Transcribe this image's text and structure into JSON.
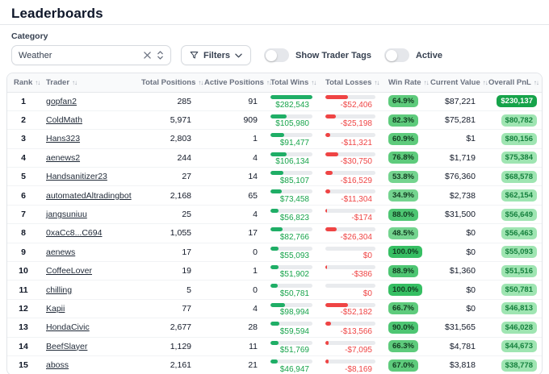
{
  "page": {
    "title": "Leaderboards"
  },
  "filters": {
    "category_label": "Category",
    "category_value": "Weather",
    "filters_button_label": "Filters",
    "toggles": [
      {
        "label": "Show Trader Tags",
        "on": false
      },
      {
        "label": "Active",
        "on": false
      }
    ]
  },
  "colors": {
    "wins_text": "#16a34a",
    "losses_text": "#ef4444",
    "win_bar": "#1fae66",
    "loss_bar": "#ef4444",
    "track": "#e9ebee",
    "winrate_badge_text": "#123c21",
    "winrate_badge_full": "#36bf63",
    "winrate_badge_high": "#4ec673",
    "winrate_badge_mid": "#5ecb7c",
    "winrate_badge_low": "#74d48f",
    "pnl_badge_bg": "#9fe5b2",
    "pnl_badge_text": "#15803d",
    "pnl_top_badge_bg": "#16a34a",
    "pnl_top_badge_text": "#ffffff"
  },
  "table": {
    "sort_icon": "↑↓",
    "columns": [
      "Rank",
      "Trader",
      "Total Positions",
      "Active Positions",
      "Total Wins",
      "Total Losses",
      "Win Rate",
      "Current Value",
      "Overall PnL"
    ],
    "wins_scale_max": 282543,
    "losses_scale_max": 52406,
    "rows": [
      {
        "rank": "1",
        "trader": "gopfan2",
        "total_positions": "285",
        "active_positions": "91",
        "total_wins": {
          "display": "$282,543",
          "value": 282543
        },
        "total_losses": {
          "display": "-$52,406",
          "value": 52406
        },
        "win_rate": {
          "display": "64.9%",
          "value": 64.9
        },
        "current_value": "$87,221",
        "overall_pnl": {
          "display": "$230,137",
          "top": true
        }
      },
      {
        "rank": "2",
        "trader": "ColdMath",
        "total_positions": "5,971",
        "active_positions": "909",
        "total_wins": {
          "display": "$105,980",
          "value": 105980
        },
        "total_losses": {
          "display": "-$25,198",
          "value": 25198
        },
        "win_rate": {
          "display": "82.3%",
          "value": 82.3
        },
        "current_value": "$75,281",
        "overall_pnl": {
          "display": "$80,782",
          "top": false
        }
      },
      {
        "rank": "3",
        "trader": "Hans323",
        "total_positions": "2,803",
        "active_positions": "1",
        "total_wins": {
          "display": "$91,477",
          "value": 91477
        },
        "total_losses": {
          "display": "-$11,321",
          "value": 11321
        },
        "win_rate": {
          "display": "60.9%",
          "value": 60.9
        },
        "current_value": "$1",
        "overall_pnl": {
          "display": "$80,156",
          "top": false
        }
      },
      {
        "rank": "4",
        "trader": "aenews2",
        "total_positions": "244",
        "active_positions": "4",
        "total_wins": {
          "display": "$106,134",
          "value": 106134
        },
        "total_losses": {
          "display": "-$30,750",
          "value": 30750
        },
        "win_rate": {
          "display": "76.8%",
          "value": 76.8
        },
        "current_value": "$1,719",
        "overall_pnl": {
          "display": "$75,384",
          "top": false
        }
      },
      {
        "rank": "5",
        "trader": "Handsanitizer23",
        "total_positions": "27",
        "active_positions": "14",
        "total_wins": {
          "display": "$85,107",
          "value": 85107
        },
        "total_losses": {
          "display": "-$16,529",
          "value": 16529
        },
        "win_rate": {
          "display": "53.8%",
          "value": 53.8
        },
        "current_value": "$76,360",
        "overall_pnl": {
          "display": "$68,578",
          "top": false
        }
      },
      {
        "rank": "6",
        "trader": "automatedAltradingbot",
        "total_positions": "2,168",
        "active_positions": "65",
        "total_wins": {
          "display": "$73,458",
          "value": 73458
        },
        "total_losses": {
          "display": "-$11,304",
          "value": 11304
        },
        "win_rate": {
          "display": "34.9%",
          "value": 34.9
        },
        "current_value": "$2,738",
        "overall_pnl": {
          "display": "$62,154",
          "top": false
        }
      },
      {
        "rank": "7",
        "trader": "jangsuniuu",
        "total_positions": "25",
        "active_positions": "4",
        "total_wins": {
          "display": "$56,823",
          "value": 56823
        },
        "total_losses": {
          "display": "-$174",
          "value": 174
        },
        "win_rate": {
          "display": "88.0%",
          "value": 88.0
        },
        "current_value": "$31,500",
        "overall_pnl": {
          "display": "$56,649",
          "top": false
        }
      },
      {
        "rank": "8",
        "trader": "0xaCc8...C694",
        "total_positions": "1,055",
        "active_positions": "17",
        "total_wins": {
          "display": "$82,766",
          "value": 82766
        },
        "total_losses": {
          "display": "-$26,304",
          "value": 26304
        },
        "win_rate": {
          "display": "48.5%",
          "value": 48.5
        },
        "current_value": "$0",
        "overall_pnl": {
          "display": "$56,463",
          "top": false
        }
      },
      {
        "rank": "9",
        "trader": "aenews",
        "total_positions": "17",
        "active_positions": "0",
        "total_wins": {
          "display": "$55,093",
          "value": 55093
        },
        "total_losses": {
          "display": "$0",
          "value": 0
        },
        "win_rate": {
          "display": "100.0%",
          "value": 100.0
        },
        "current_value": "$0",
        "overall_pnl": {
          "display": "$55,093",
          "top": false
        }
      },
      {
        "rank": "10",
        "trader": "CoffeeLover",
        "total_positions": "19",
        "active_positions": "1",
        "total_wins": {
          "display": "$51,902",
          "value": 51902
        },
        "total_losses": {
          "display": "-$386",
          "value": 386
        },
        "win_rate": {
          "display": "88.9%",
          "value": 88.9
        },
        "current_value": "$1,360",
        "overall_pnl": {
          "display": "$51,516",
          "top": false
        }
      },
      {
        "rank": "11",
        "trader": "chilling",
        "total_positions": "5",
        "active_positions": "0",
        "total_wins": {
          "display": "$50,781",
          "value": 50781
        },
        "total_losses": {
          "display": "$0",
          "value": 0
        },
        "win_rate": {
          "display": "100.0%",
          "value": 100.0
        },
        "current_value": "$0",
        "overall_pnl": {
          "display": "$50,781",
          "top": false
        }
      },
      {
        "rank": "12",
        "trader": "Kapii",
        "total_positions": "77",
        "active_positions": "4",
        "total_wins": {
          "display": "$98,994",
          "value": 98994
        },
        "total_losses": {
          "display": "-$52,182",
          "value": 52182
        },
        "win_rate": {
          "display": "66.7%",
          "value": 66.7
        },
        "current_value": "$0",
        "overall_pnl": {
          "display": "$46,813",
          "top": false
        }
      },
      {
        "rank": "13",
        "trader": "HondaCivic",
        "total_positions": "2,677",
        "active_positions": "28",
        "total_wins": {
          "display": "$59,594",
          "value": 59594
        },
        "total_losses": {
          "display": "-$13,566",
          "value": 13566
        },
        "win_rate": {
          "display": "90.0%",
          "value": 90.0
        },
        "current_value": "$31,565",
        "overall_pnl": {
          "display": "$46,028",
          "top": false
        }
      },
      {
        "rank": "14",
        "trader": "BeefSlayer",
        "total_positions": "1,129",
        "active_positions": "11",
        "total_wins": {
          "display": "$51,769",
          "value": 51769
        },
        "total_losses": {
          "display": "-$7,095",
          "value": 7095
        },
        "win_rate": {
          "display": "66.3%",
          "value": 66.3
        },
        "current_value": "$4,781",
        "overall_pnl": {
          "display": "$44,673",
          "top": false
        }
      },
      {
        "rank": "15",
        "trader": "aboss",
        "total_positions": "2,161",
        "active_positions": "21",
        "total_wins": {
          "display": "$46,947",
          "value": 46947
        },
        "total_losses": {
          "display": "-$8,169",
          "value": 8169
        },
        "win_rate": {
          "display": "67.0%",
          "value": 67.0
        },
        "current_value": "$3,818",
        "overall_pnl": {
          "display": "$38,778",
          "top": false
        }
      }
    ]
  }
}
